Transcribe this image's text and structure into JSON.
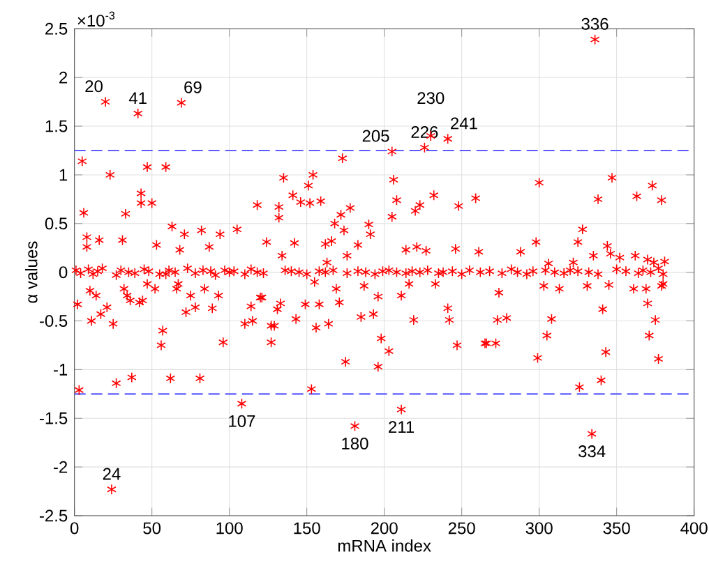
{
  "chart_data": {
    "type": "scatter",
    "xlabel": "mRNA index",
    "ylabel": "α values",
    "xlim": [
      0,
      400
    ],
    "ylim": [
      -2.5,
      2.5
    ],
    "xticks": [
      0,
      50,
      100,
      150,
      200,
      250,
      300,
      350,
      400
    ],
    "yticks": [
      -2.5,
      -2,
      -1.5,
      -1,
      -0.5,
      0,
      0.5,
      1,
      1.5,
      2,
      2.5
    ],
    "grid": true,
    "marker": "cross",
    "series": [
      {
        "color": "#ff0000",
        "x": [
          20,
          41,
          69,
          5,
          23,
          6,
          47,
          59,
          43,
          43,
          50,
          33,
          118,
          63,
          105,
          8,
          16,
          8,
          31,
          71,
          82,
          94,
          53,
          68,
          87,
          124,
          173,
          205,
          226,
          230,
          241,
          135,
          154,
          151,
          206,
          132,
          132,
          141,
          146,
          152,
          159,
          208,
          232,
          223,
          220,
          248,
          259,
          178,
          172,
          168,
          174,
          190,
          191,
          205,
          142,
          166,
          162,
          183,
          214,
          221,
          227,
          246,
          261,
          176,
          134,
          163,
          336,
          300,
          347,
          338,
          363,
          373,
          379,
          328,
          325,
          298,
          288,
          344,
          346,
          335,
          322,
          352,
          362,
          370,
          374,
          381,
          306,
          3,
          24,
          27,
          37,
          62,
          81,
          108,
          56,
          57,
          96,
          2,
          11,
          17,
          21,
          25,
          10,
          14,
          34,
          36,
          42,
          44,
          32,
          47,
          52,
          59,
          67,
          66,
          72,
          75,
          78,
          84,
          93,
          89,
          110,
          115,
          114,
          120,
          127,
          127,
          153,
          181,
          211,
          175,
          196,
          198,
          203,
          129,
          143,
          149,
          158,
          156,
          164,
          171,
          169,
          185,
          187,
          196,
          193,
          211,
          219,
          216,
          233,
          241,
          242,
          247,
          265,
          121,
          131,
          133,
          155,
          334,
          326,
          340,
          299,
          305,
          308,
          341,
          343,
          377,
          371,
          375,
          370,
          266,
          272,
          273,
          279,
          274,
          303,
          313,
          331,
          345,
          361,
          369,
          379,
          380,
          1,
          4,
          9,
          12,
          15,
          18,
          27,
          30,
          35,
          39,
          45,
          48,
          55,
          61,
          65,
          73,
          78,
          83,
          88,
          91,
          97,
          100,
          103,
          110,
          114,
          118,
          122,
          136,
          140,
          145,
          150,
          158,
          162,
          167,
          176,
          183,
          188,
          194,
          199,
          203,
          208,
          214,
          218,
          223,
          228,
          235,
          238,
          244,
          250,
          255,
          262,
          268,
          276,
          282,
          286,
          292,
          296,
          304,
          310,
          316,
          320,
          325,
          332,
          338,
          350,
          356,
          364,
          367,
          372,
          377,
          380
        ],
        "values": [
          1.75,
          1.63,
          1.74,
          1.14,
          1.0,
          0.61,
          1.08,
          1.08,
          0.81,
          0.71,
          0.71,
          0.6,
          0.69,
          0.47,
          0.44,
          0.36,
          0.33,
          0.26,
          0.33,
          0.39,
          0.43,
          0.39,
          0.28,
          0.23,
          0.26,
          0.31,
          1.17,
          1.24,
          1.28,
          1.4,
          1.37,
          0.97,
          1.0,
          0.89,
          0.95,
          0.67,
          0.56,
          0.79,
          0.72,
          0.71,
          0.73,
          0.74,
          0.79,
          0.69,
          0.63,
          0.68,
          0.76,
          0.66,
          0.59,
          0.5,
          0.43,
          0.49,
          0.39,
          0.57,
          0.3,
          0.32,
          0.29,
          0.28,
          0.23,
          0.26,
          0.22,
          0.24,
          0.21,
          0.17,
          0.17,
          0.1,
          2.39,
          0.92,
          0.97,
          0.75,
          0.78,
          0.89,
          0.74,
          0.44,
          0.31,
          0.31,
          0.21,
          0.27,
          0.19,
          0.17,
          0.1,
          0.15,
          0.17,
          0.13,
          0.1,
          0.11,
          0.09,
          -1.21,
          -2.23,
          -1.14,
          -1.08,
          -1.09,
          -1.09,
          -1.35,
          -0.75,
          -0.6,
          -0.72,
          -0.33,
          -0.5,
          -0.43,
          -0.36,
          -0.53,
          -0.19,
          -0.24,
          -0.24,
          -0.29,
          -0.31,
          -0.29,
          -0.17,
          -0.12,
          -0.17,
          -0.02,
          -0.12,
          -0.17,
          -0.41,
          -0.24,
          -0.36,
          -0.17,
          -0.24,
          -0.37,
          -0.53,
          -0.5,
          -0.35,
          -0.26,
          -0.72,
          -0.55,
          -1.2,
          -1.58,
          -1.41,
          -0.92,
          -0.97,
          -0.68,
          -0.81,
          -0.55,
          -0.48,
          -0.33,
          -0.33,
          -0.57,
          -0.53,
          -0.31,
          -0.17,
          -0.46,
          -0.14,
          -0.25,
          -0.43,
          -0.24,
          -0.49,
          -0.12,
          -0.12,
          -0.37,
          -0.49,
          -0.75,
          -0.73,
          -0.26,
          -0.38,
          -0.32,
          -0.1,
          -1.66,
          -1.18,
          -1.11,
          -0.88,
          -0.65,
          -0.48,
          -0.38,
          -0.82,
          -0.89,
          -0.65,
          -0.49,
          -0.32,
          -0.73,
          -0.73,
          -0.49,
          -0.47,
          -0.21,
          -0.14,
          -0.17,
          -0.14,
          -0.13,
          -0.17,
          -0.17,
          -0.14,
          -0.12,
          0.02,
          -0.01,
          0.03,
          -0.02,
          0.01,
          0.04,
          -0.03,
          0.02,
          0.0,
          -0.01,
          0.03,
          0.01,
          -0.02,
          0.02,
          0.0,
          0.04,
          -0.01,
          0.02,
          0.01,
          -0.03,
          0.02,
          0.0,
          0.01,
          -0.02,
          0.03,
          0.0,
          -0.01,
          0.02,
          0.01,
          0.0,
          -0.02,
          0.01,
          0.0,
          0.02,
          -0.01,
          0.01,
          0.0,
          -0.02,
          0.01,
          0.02,
          0.0,
          -0.01,
          0.01,
          0.0,
          0.02,
          -0.01,
          0.0,
          0.01,
          -0.02,
          0.02,
          0.0,
          0.01,
          -0.01,
          0.03,
          0.0,
          -0.02,
          0.01,
          0.02,
          0.0,
          -0.01,
          0.02,
          0.01,
          0.0,
          -0.02,
          0.03,
          0.01,
          -0.01,
          0.02,
          0.0,
          0.04,
          -0.02
        ]
      }
    ],
    "ref_lines": [
      {
        "axis": "y",
        "value": 1.25,
        "color": "#5c5cff",
        "line_style": "dashed"
      },
      {
        "axis": "y",
        "value": -1.25,
        "color": "#5c5cff",
        "line_style": "dashed"
      }
    ],
    "annotations": [
      "×10$^{-3}$",
      {
        "text": "20",
        "x": 20,
        "y": 1.75
      },
      {
        "text": "41",
        "x": 41,
        "y": 1.63
      },
      {
        "text": "69",
        "x": 69,
        "y": 1.74
      },
      {
        "text": "205",
        "x": 205,
        "y": 1.24
      },
      {
        "text": "226",
        "x": 226,
        "y": 1.28
      },
      {
        "text": "230",
        "x": 230,
        "y": 1.4
      },
      {
        "text": "241",
        "x": 241,
        "y": 1.37
      },
      {
        "text": "336",
        "x": 336,
        "y": 2.39
      },
      {
        "text": "24",
        "x": 24,
        "y": -2.23
      },
      {
        "text": "107",
        "x": 108,
        "y": -1.35
      },
      {
        "text": "180",
        "x": 181,
        "y": -1.58
      },
      {
        "text": "211",
        "x": 211,
        "y": -1.41
      },
      {
        "text": "334",
        "x": 334,
        "y": -1.66
      }
    ]
  }
}
